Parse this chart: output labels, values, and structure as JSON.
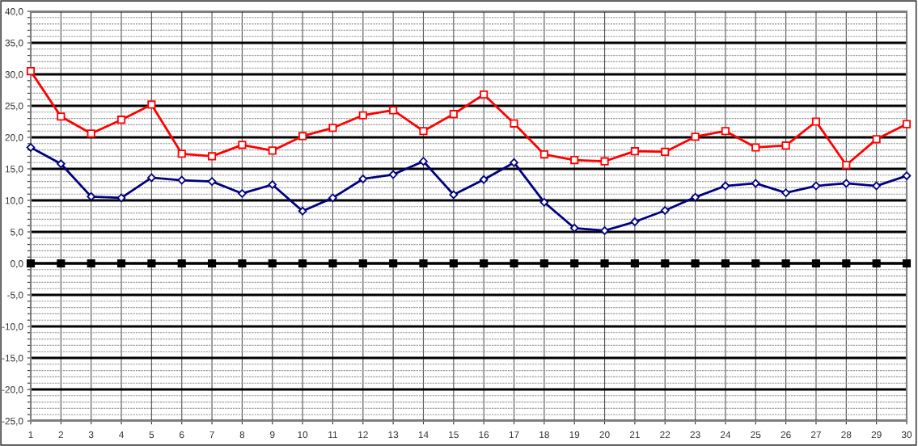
{
  "chart_data": {
    "type": "line",
    "x": [
      1,
      2,
      3,
      4,
      5,
      6,
      7,
      8,
      9,
      10,
      11,
      12,
      13,
      14,
      15,
      16,
      17,
      18,
      19,
      20,
      21,
      22,
      23,
      24,
      25,
      26,
      27,
      28,
      29,
      30
    ],
    "series": [
      {
        "color": "#ff0000",
        "marker": "square",
        "values": [
          30.5,
          23.3,
          20.6,
          22.8,
          25.2,
          17.4,
          17.0,
          18.8,
          17.9,
          20.2,
          21.5,
          23.5,
          24.3,
          21.0,
          23.7,
          26.8,
          22.2,
          17.3,
          16.4,
          16.2,
          17.8,
          17.7,
          20.1,
          21.0,
          18.4,
          18.7,
          22.5,
          15.6,
          19.7,
          22.1
        ]
      },
      {
        "color": "#000080",
        "marker": "diamond",
        "values": [
          18.4,
          15.8,
          10.6,
          10.4,
          13.6,
          13.2,
          13.0,
          11.1,
          12.5,
          8.3,
          10.4,
          13.4,
          14.1,
          16.2,
          10.9,
          13.3,
          16.0,
          9.7,
          5.6,
          5.2,
          6.6,
          8.4,
          10.5,
          12.3,
          12.7,
          11.2,
          12.3,
          12.7,
          12.3,
          13.9
        ]
      },
      {
        "color": "#000000",
        "marker": "square",
        "values": [
          0,
          0,
          0,
          0,
          0,
          0,
          0,
          0,
          0,
          0,
          0,
          0,
          0,
          0,
          0,
          0,
          0,
          0,
          0,
          0,
          0,
          0,
          0,
          0,
          0,
          0,
          0,
          0,
          0,
          0
        ]
      }
    ],
    "xlim": [
      1,
      30
    ],
    "xticks": [
      1,
      2,
      3,
      4,
      5,
      6,
      7,
      8,
      9,
      10,
      11,
      12,
      13,
      14,
      15,
      16,
      17,
      18,
      19,
      20,
      21,
      22,
      23,
      24,
      25,
      26,
      27,
      28,
      29,
      30
    ],
    "ylim": [
      -25,
      40
    ],
    "yticks": [
      {
        "value": -25,
        "label": "-25,0"
      },
      {
        "value": -24,
        "label": null
      },
      {
        "value": -23,
        "label": null
      },
      {
        "value": -22,
        "label": null
      },
      {
        "value": -21,
        "label": null
      },
      {
        "value": -20,
        "label": "-20,0"
      },
      {
        "value": -19,
        "label": null
      },
      {
        "value": -18,
        "label": null
      },
      {
        "value": -17,
        "label": null
      },
      {
        "value": -16,
        "label": null
      },
      {
        "value": -15,
        "label": "-15,0"
      },
      {
        "value": -14,
        "label": null
      },
      {
        "value": -13,
        "label": null
      },
      {
        "value": -12,
        "label": null
      },
      {
        "value": -11,
        "label": null
      },
      {
        "value": -10,
        "label": "-10,0"
      },
      {
        "value": -9,
        "label": null
      },
      {
        "value": -8,
        "label": null
      },
      {
        "value": -7,
        "label": null
      },
      {
        "value": -6,
        "label": null
      },
      {
        "value": -5,
        "label": "-5,0"
      },
      {
        "value": -4,
        "label": null
      },
      {
        "value": -3,
        "label": null
      },
      {
        "value": -2,
        "label": null
      },
      {
        "value": -1,
        "label": null
      },
      {
        "value": 0,
        "label": "0,0"
      },
      {
        "value": 1,
        "label": null
      },
      {
        "value": 2,
        "label": null
      },
      {
        "value": 3,
        "label": null
      },
      {
        "value": 4,
        "label": null
      },
      {
        "value": 5,
        "label": "5,0"
      },
      {
        "value": 6,
        "label": null
      },
      {
        "value": 7,
        "label": null
      },
      {
        "value": 8,
        "label": null
      },
      {
        "value": 9,
        "label": null
      },
      {
        "value": 10,
        "label": "10,0"
      },
      {
        "value": 11,
        "label": null
      },
      {
        "value": 12,
        "label": null
      },
      {
        "value": 13,
        "label": null
      },
      {
        "value": 14,
        "label": null
      },
      {
        "value": 15,
        "label": "15,0"
      },
      {
        "value": 16,
        "label": null
      },
      {
        "value": 17,
        "label": null
      },
      {
        "value": 18,
        "label": null
      },
      {
        "value": 19,
        "label": null
      },
      {
        "value": 20,
        "label": "20,0"
      },
      {
        "value": 21,
        "label": null
      },
      {
        "value": 22,
        "label": null
      },
      {
        "value": 23,
        "label": null
      },
      {
        "value": 24,
        "label": null
      },
      {
        "value": 25,
        "label": "25,0"
      },
      {
        "value": 26,
        "label": null
      },
      {
        "value": 27,
        "label": null
      },
      {
        "value": 28,
        "label": null
      },
      {
        "value": 29,
        "label": null
      },
      {
        "value": 30,
        "label": "30,0"
      },
      {
        "value": 31,
        "label": null
      },
      {
        "value": 32,
        "label": null
      },
      {
        "value": 33,
        "label": null
      },
      {
        "value": 34,
        "label": null
      },
      {
        "value": 35,
        "label": "35,0"
      },
      {
        "value": 36,
        "label": null
      },
      {
        "value": 37,
        "label": null
      },
      {
        "value": 38,
        "label": null
      },
      {
        "value": 39,
        "label": null
      },
      {
        "value": 40,
        "label": "40,0"
      }
    ],
    "grid": true,
    "line_style": "solid"
  }
}
